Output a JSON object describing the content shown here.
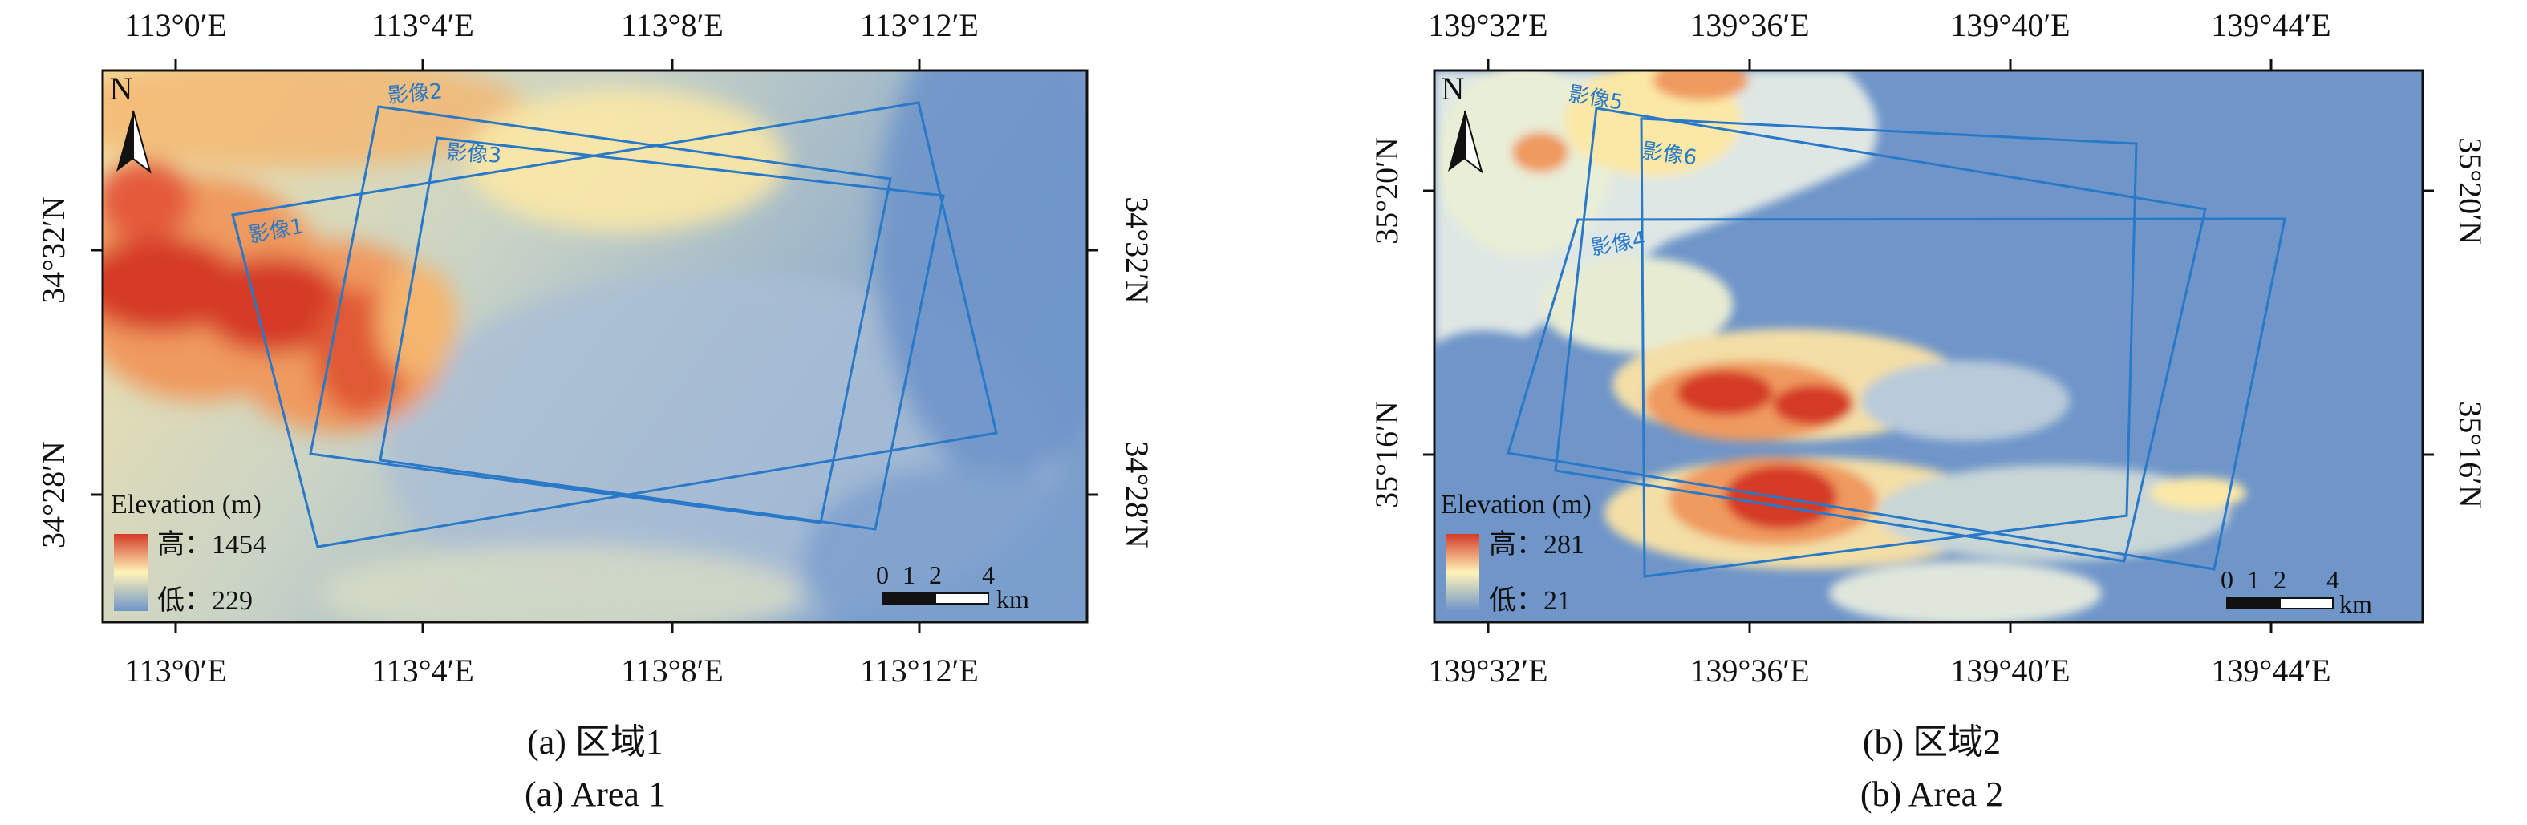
{
  "colors": {
    "dem_low": "#6f95c9",
    "dem_mid": "#fff3b8",
    "dem_high": "#d53b28",
    "footprint": "#2a79c8"
  },
  "panels": [
    {
      "id": "a",
      "caption_cn": "(a) 区域1",
      "caption_en": "(a) Area 1",
      "lon_ticks": [
        "113°0′E",
        "113°4′E",
        "113°8′E",
        "113°12′E"
      ],
      "lat_ticks": [
        "34°32′N",
        "34°28′N"
      ],
      "legend": {
        "title": "Elevation (m)",
        "high": "高：1454",
        "low": "低：229"
      },
      "scalebar": {
        "ticks": [
          "0",
          "1",
          "2",
          "4"
        ],
        "unit": "km"
      },
      "north": "N",
      "images": [
        "影像1",
        "影像2",
        "影像3"
      ]
    },
    {
      "id": "b",
      "caption_cn": "(b) 区域2",
      "caption_en": "(b) Area 2",
      "lon_ticks": [
        "139°32′E",
        "139°36′E",
        "139°40′E",
        "139°44′E"
      ],
      "lat_ticks": [
        "35°20′N",
        "35°16′N"
      ],
      "legend": {
        "title": "Elevation (m)",
        "high": "高：281",
        "low": "低：21"
      },
      "scalebar": {
        "ticks": [
          "0",
          "1",
          "2",
          "4"
        ],
        "unit": "km"
      },
      "north": "N",
      "images": [
        "影像4",
        "影像5",
        "影像6"
      ]
    }
  ]
}
